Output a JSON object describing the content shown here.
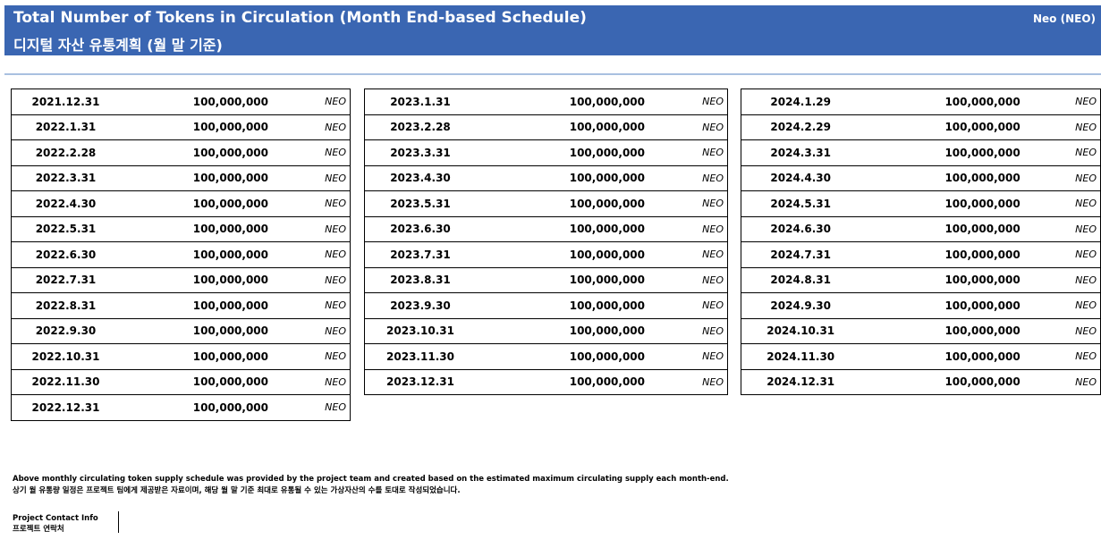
{
  "header": {
    "title": "Total Number of Tokens in Circulation (Month End-based Schedule)",
    "subtitle": "디지털 자산 유통계획 (월 말 기준)",
    "token": "Neo (NEO)"
  },
  "tables": [
    {
      "rows": [
        [
          "2021.12.31",
          "100,000,000",
          "NEO"
        ],
        [
          "2022.1.31",
          "100,000,000",
          "NEO"
        ],
        [
          "2022.2.28",
          "100,000,000",
          "NEO"
        ],
        [
          "2022.3.31",
          "100,000,000",
          "NEO"
        ],
        [
          "2022.4.30",
          "100,000,000",
          "NEO"
        ],
        [
          "2022.5.31",
          "100,000,000",
          "NEO"
        ],
        [
          "2022.6.30",
          "100,000,000",
          "NEO"
        ],
        [
          "2022.7.31",
          "100,000,000",
          "NEO"
        ],
        [
          "2022.8.31",
          "100,000,000",
          "NEO"
        ],
        [
          "2022.9.30",
          "100,000,000",
          "NEO"
        ],
        [
          "2022.10.31",
          "100,000,000",
          "NEO"
        ],
        [
          "2022.11.30",
          "100,000,000",
          "NEO"
        ],
        [
          "2022.12.31",
          "100,000,000",
          "NEO"
        ]
      ]
    },
    {
      "rows": [
        [
          "2023.1.31",
          "100,000,000",
          "NEO"
        ],
        [
          "2023.2.28",
          "100,000,000",
          "NEO"
        ],
        [
          "2023.3.31",
          "100,000,000",
          "NEO"
        ],
        [
          "2023.4.30",
          "100,000,000",
          "NEO"
        ],
        [
          "2023.5.31",
          "100,000,000",
          "NEO"
        ],
        [
          "2023.6.30",
          "100,000,000",
          "NEO"
        ],
        [
          "2023.7.31",
          "100,000,000",
          "NEO"
        ],
        [
          "2023.8.31",
          "100,000,000",
          "NEO"
        ],
        [
          "2023.9.30",
          "100,000,000",
          "NEO"
        ],
        [
          "2023.10.31",
          "100,000,000",
          "NEO"
        ],
        [
          "2023.11.30",
          "100,000,000",
          "NEO"
        ],
        [
          "2023.12.31",
          "100,000,000",
          "NEO"
        ]
      ]
    },
    {
      "rows": [
        [
          "2024.1.29",
          "100,000,000",
          "NEO"
        ],
        [
          "2024.2.29",
          "100,000,000",
          "NEO"
        ],
        [
          "2024.3.31",
          "100,000,000",
          "NEO"
        ],
        [
          "2024.4.30",
          "100,000,000",
          "NEO"
        ],
        [
          "2024.5.31",
          "100,000,000",
          "NEO"
        ],
        [
          "2024.6.30",
          "100,000,000",
          "NEO"
        ],
        [
          "2024.7.31",
          "100,000,000",
          "NEO"
        ],
        [
          "2024.8.31",
          "100,000,000",
          "NEO"
        ],
        [
          "2024.9.30",
          "100,000,000",
          "NEO"
        ],
        [
          "2024.10.31",
          "100,000,000",
          "NEO"
        ],
        [
          "2024.11.30",
          "100,000,000",
          "NEO"
        ],
        [
          "2024.12.31",
          "100,000,000",
          "NEO"
        ]
      ]
    }
  ],
  "footnote": {
    "english": "Above monthly circulating token supply schedule was provided by the project team and created based on the estimated maximum circulating supply each month-end.",
    "korean": "상기 월 유통량 일정은 프로젝트 팀에게 제공받은 자료이며, 해당 월 말 기준 최대로 유통될 수 있는 가상자산의 수를 토대로 작성되었습니다."
  },
  "contact": {
    "english": "Project Contact Info",
    "korean": "프로젝트 연락처"
  }
}
